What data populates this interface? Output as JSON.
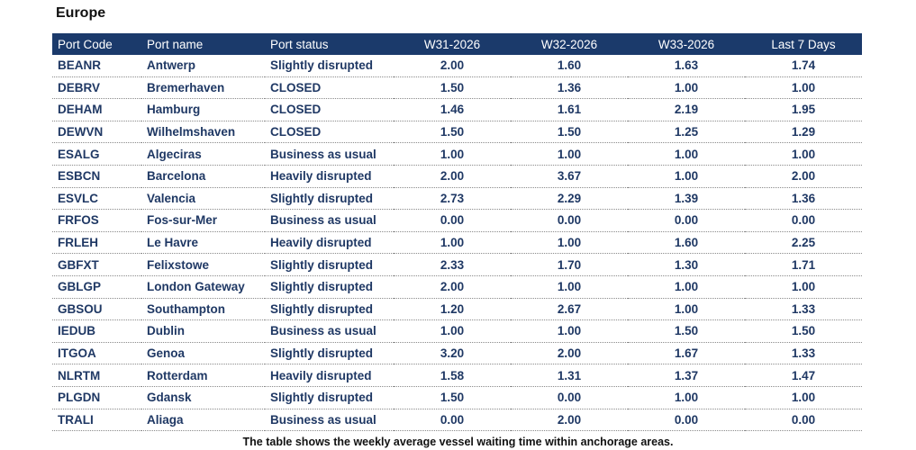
{
  "title": "Europe",
  "caption": "The table shows the weekly average vessel waiting time within anchorage areas.",
  "chart_data": {
    "type": "table",
    "columns": [
      "Port Code",
      "Port name",
      "Port status",
      "W31-2026",
      "W32-2026",
      "W33-2026",
      "Last 7 Days"
    ],
    "rows": [
      [
        "BEANR",
        "Antwerp",
        "Slightly disrupted",
        "2.00",
        "1.60",
        "1.63",
        "1.74"
      ],
      [
        "DEBRV",
        "Bremerhaven",
        "CLOSED",
        "1.50",
        "1.36",
        "1.00",
        "1.00"
      ],
      [
        "DEHAM",
        "Hamburg",
        "CLOSED",
        "1.46",
        "1.61",
        "2.19",
        "1.95"
      ],
      [
        "DEWVN",
        "Wilhelmshaven",
        "CLOSED",
        "1.50",
        "1.50",
        "1.25",
        "1.29"
      ],
      [
        "ESALG",
        "Algeciras",
        "Business as usual",
        "1.00",
        "1.00",
        "1.00",
        "1.00"
      ],
      [
        "ESBCN",
        "Barcelona",
        "Heavily disrupted",
        "2.00",
        "3.67",
        "1.00",
        "2.00"
      ],
      [
        "ESVLC",
        "Valencia",
        "Slightly disrupted",
        "2.73",
        "2.29",
        "1.39",
        "1.36"
      ],
      [
        "FRFOS",
        "Fos-sur-Mer",
        "Business as usual",
        "0.00",
        "0.00",
        "0.00",
        "0.00"
      ],
      [
        "FRLEH",
        "Le Havre",
        "Heavily disrupted",
        "1.00",
        "1.00",
        "1.60",
        "2.25"
      ],
      [
        "GBFXT",
        "Felixstowe",
        "Slightly disrupted",
        "2.33",
        "1.70",
        "1.30",
        "1.71"
      ],
      [
        "GBLGP",
        "London Gateway",
        "Slightly disrupted",
        "2.00",
        "1.00",
        "1.00",
        "1.00"
      ],
      [
        "GBSOU",
        "Southampton",
        "Slightly disrupted",
        "1.20",
        "2.67",
        "1.00",
        "1.33"
      ],
      [
        "IEDUB",
        "Dublin",
        "Business as usual",
        "1.00",
        "1.00",
        "1.50",
        "1.50"
      ],
      [
        "ITGOA",
        "Genoa",
        "Slightly disrupted",
        "3.20",
        "2.00",
        "1.67",
        "1.33"
      ],
      [
        "NLRTM",
        "Rotterdam",
        "Heavily disrupted",
        "1.58",
        "1.31",
        "1.37",
        "1.47"
      ],
      [
        "PLGDN",
        "Gdansk",
        "Slightly disrupted",
        "1.50",
        "0.00",
        "1.00",
        "1.00"
      ],
      [
        "TRALI",
        "Aliaga",
        "Business as usual",
        "0.00",
        "2.00",
        "0.00",
        "0.00"
      ]
    ]
  }
}
